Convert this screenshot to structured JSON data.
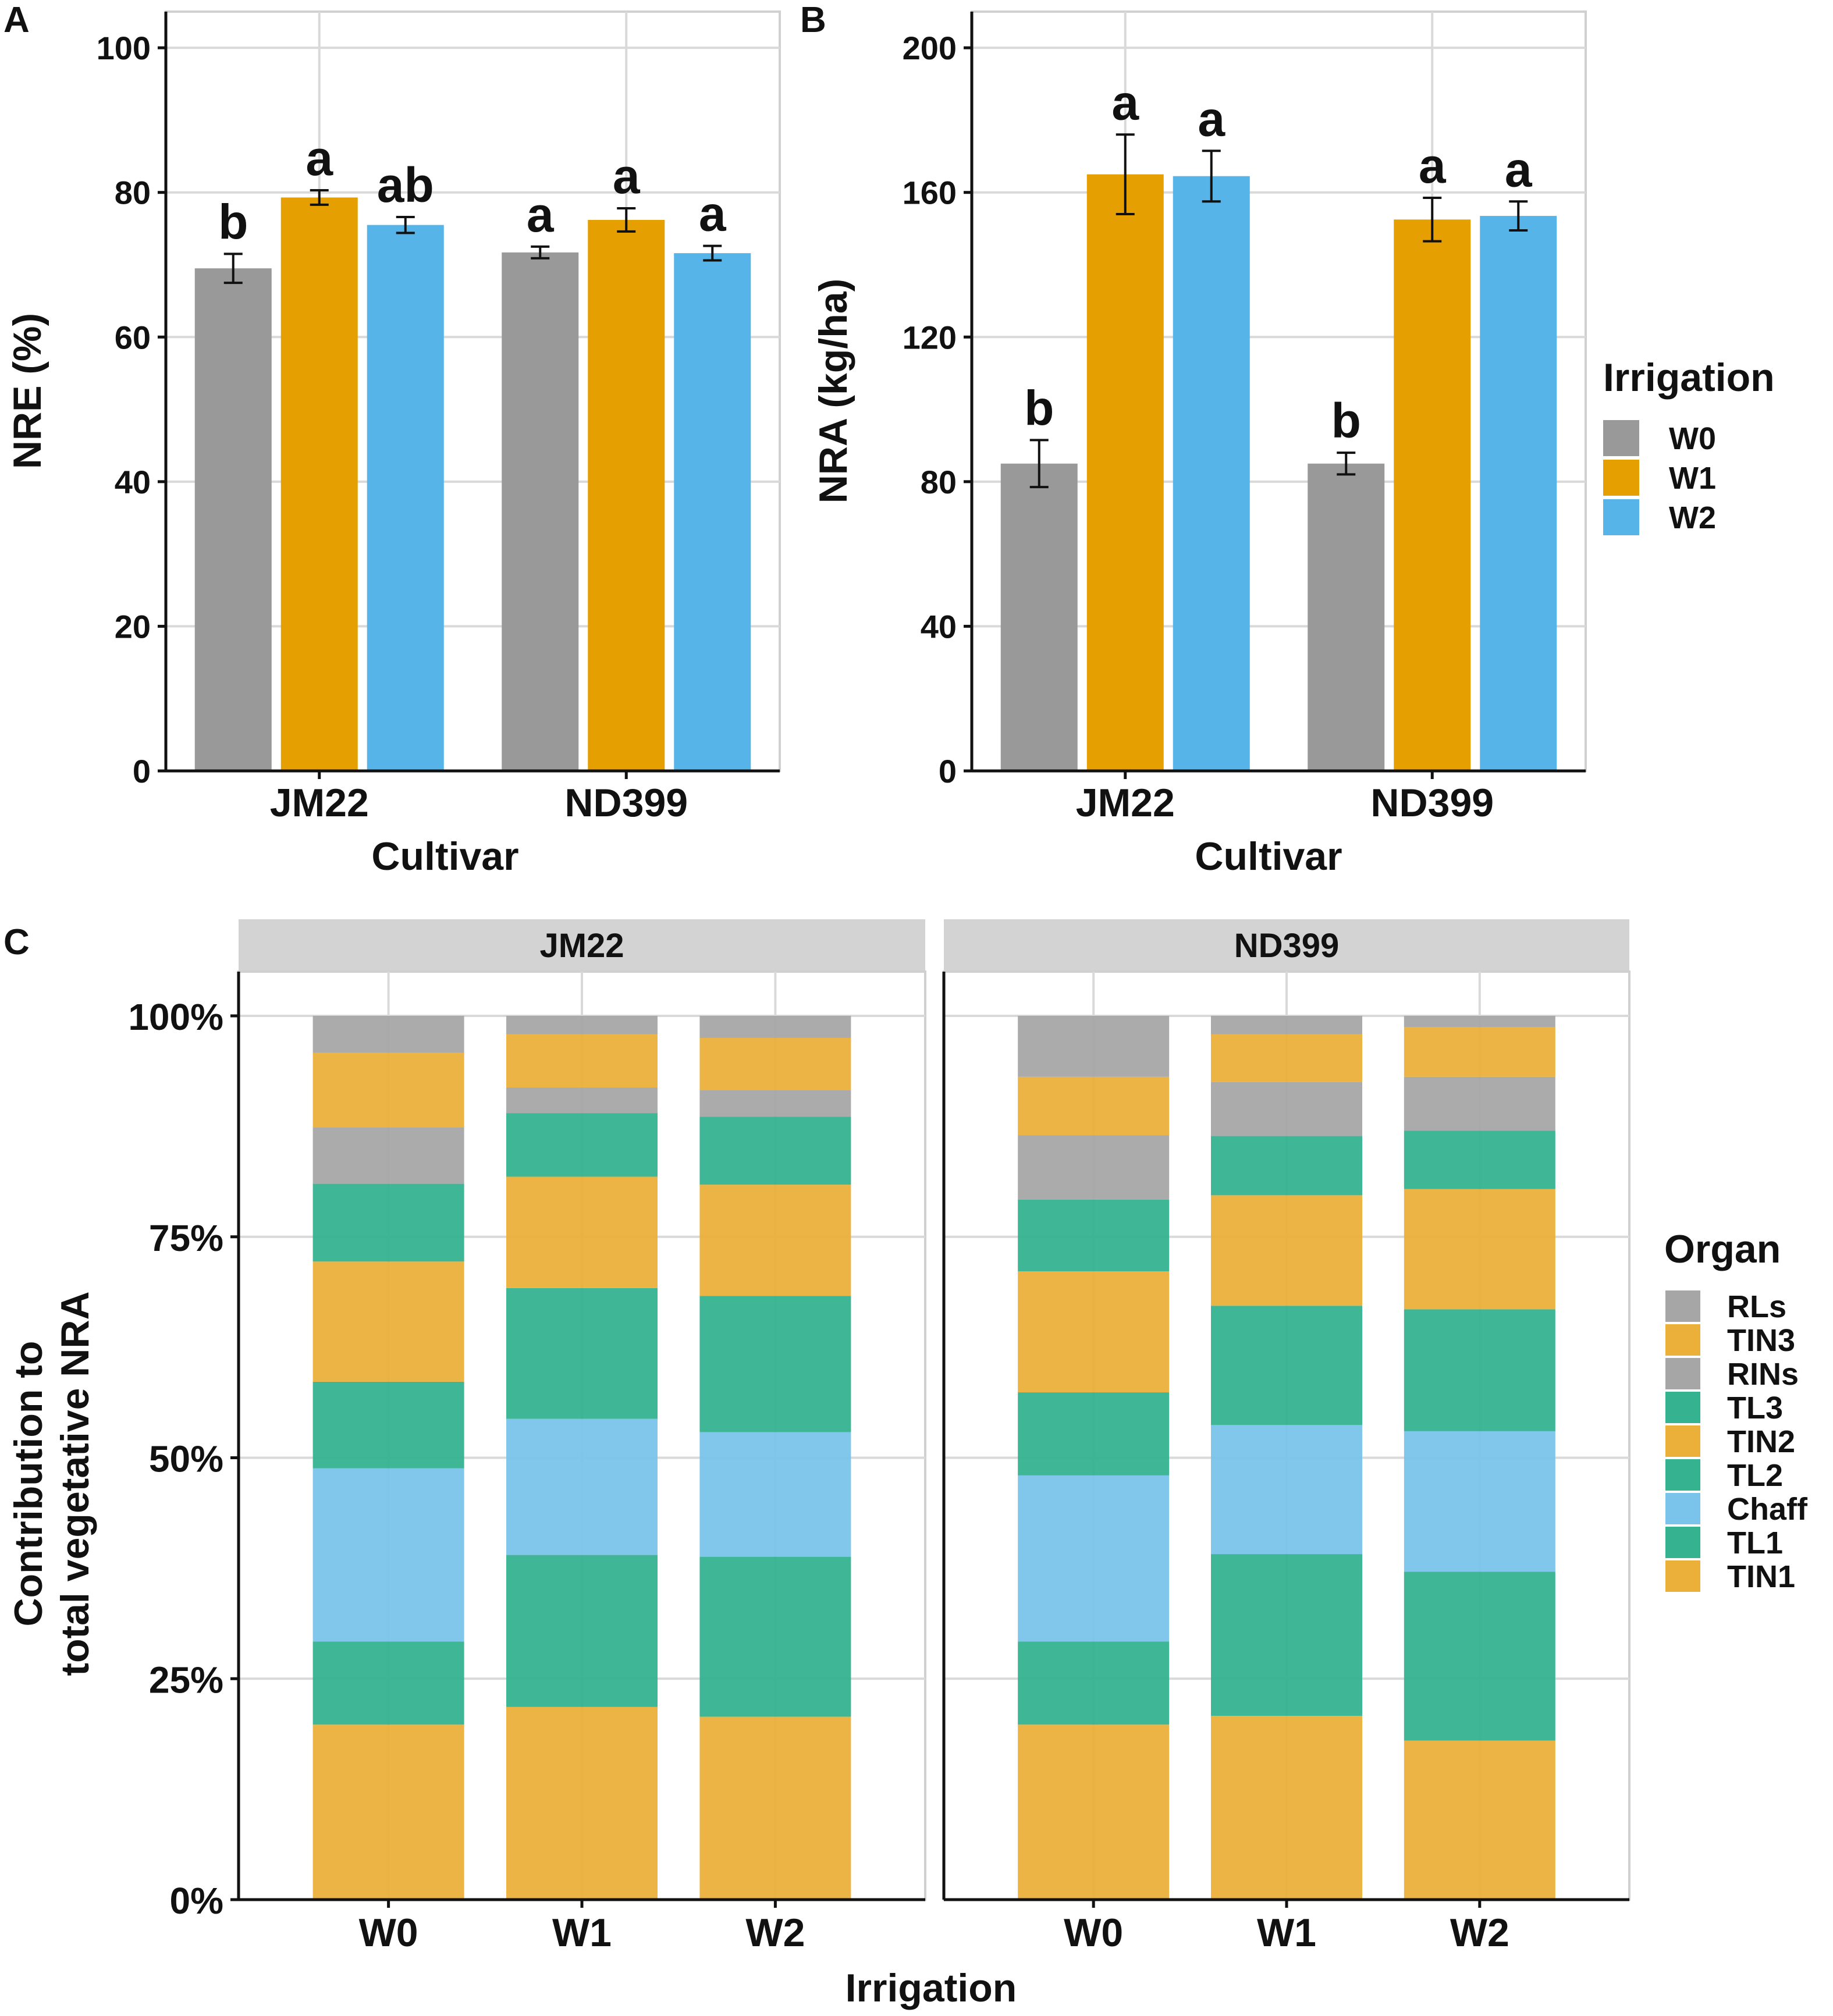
{
  "chart_data": [
    {
      "panel": "A",
      "type": "bar",
      "ylabel": "NRE (%)",
      "xlabel": "Cultivar",
      "ylim": [
        0,
        100
      ],
      "yticks": [
        "0",
        "20",
        "40",
        "60",
        "80",
        "100"
      ],
      "categories": [
        "JM22",
        "ND399"
      ],
      "series": [
        {
          "name": "W0",
          "values": [
            69.5,
            71.7
          ],
          "errors": [
            2.0,
            0.8
          ],
          "letters": [
            "b",
            "a"
          ]
        },
        {
          "name": "W1",
          "values": [
            79.3,
            76.2
          ],
          "errors": [
            1.0,
            1.6
          ],
          "letters": [
            "a",
            "a"
          ]
        },
        {
          "name": "W2",
          "values": [
            75.5,
            71.6
          ],
          "errors": [
            1.1,
            1.0
          ],
          "letters": [
            "ab",
            "a"
          ]
        }
      ]
    },
    {
      "panel": "B",
      "type": "bar",
      "ylabel": "NRA (kg/ha)",
      "xlabel": "Cultivar",
      "ylim": [
        0,
        200
      ],
      "yticks": [
        "0",
        "40",
        "80",
        "120",
        "160",
        "200"
      ],
      "categories": [
        "JM22",
        "ND399"
      ],
      "series": [
        {
          "name": "W0",
          "values": [
            85,
            85
          ],
          "errors": [
            6.5,
            3.0
          ],
          "letters": [
            "b",
            "b"
          ]
        },
        {
          "name": "W1",
          "values": [
            165,
            152.5
          ],
          "errors": [
            11,
            6.0
          ],
          "letters": [
            "a",
            "a"
          ]
        },
        {
          "name": "W2",
          "values": [
            164.5,
            153.5
          ],
          "errors": [
            7.0,
            4.0
          ],
          "letters": [
            "a",
            "a"
          ]
        }
      ],
      "legend_title": "Irrigation"
    },
    {
      "panel": "C",
      "type": "stacked-bar",
      "ylabel_lines": [
        "Contribution to",
        "total vegetative NRA"
      ],
      "xlabel": "Irrigation",
      "yticks": [
        "0%",
        "25%",
        "50%",
        "75%",
        "100%"
      ],
      "facets": [
        "JM22",
        "ND399"
      ],
      "categories": [
        "W0",
        "W1",
        "W2"
      ],
      "legend_title": "Organ",
      "legend_order": [
        "RLs",
        "TIN3",
        "RINs",
        "TL3",
        "TIN2",
        "TL2",
        "Chaff",
        "TL1",
        "TIN1"
      ],
      "stack_order": [
        "TIN1",
        "TL1",
        "Chaff",
        "TL2",
        "TIN2",
        "TL3",
        "RINs",
        "TIN3",
        "RLs"
      ],
      "values_pct": {
        "JM22": {
          "W0": [
            19.8,
            9.4,
            19.6,
            9.8,
            13.6,
            8.8,
            6.4,
            8.4,
            4.2
          ],
          "W1": [
            21.8,
            17.2,
            15.4,
            14.8,
            12.6,
            7.2,
            2.9,
            6.0,
            2.1
          ],
          "W2": [
            20.7,
            18.1,
            14.1,
            15.4,
            12.6,
            7.7,
            3.0,
            5.9,
            2.5
          ]
        },
        "ND399": {
          "W0": [
            19.8,
            9.4,
            18.8,
            9.4,
            13.7,
            8.1,
            7.3,
            6.6,
            6.9
          ],
          "W1": [
            20.8,
            18.3,
            14.6,
            13.5,
            12.5,
            6.7,
            6.1,
            5.4,
            2.1
          ],
          "W2": [
            18.0,
            19.1,
            15.9,
            13.8,
            13.6,
            6.6,
            6.1,
            5.6,
            1.3
          ]
        }
      }
    }
  ],
  "labels": {
    "panel_a": "A",
    "panel_b": "B",
    "panel_c": "C",
    "irrigation_legend_title": "Irrigation",
    "organ_legend_title": "Organ"
  },
  "colors": {
    "W0": "#999999",
    "W1": "#E69F00",
    "W2": "#56B4E9",
    "RLs": "#a6a6a6",
    "TIN3": "#EAB03A",
    "RINs": "#a6a6a6",
    "TL3": "#35B290",
    "TIN2": "#EAB03A",
    "TL2": "#35B290",
    "Chaff": "#7AC3EA",
    "TL1": "#35B290",
    "TIN1": "#EAB03A"
  }
}
